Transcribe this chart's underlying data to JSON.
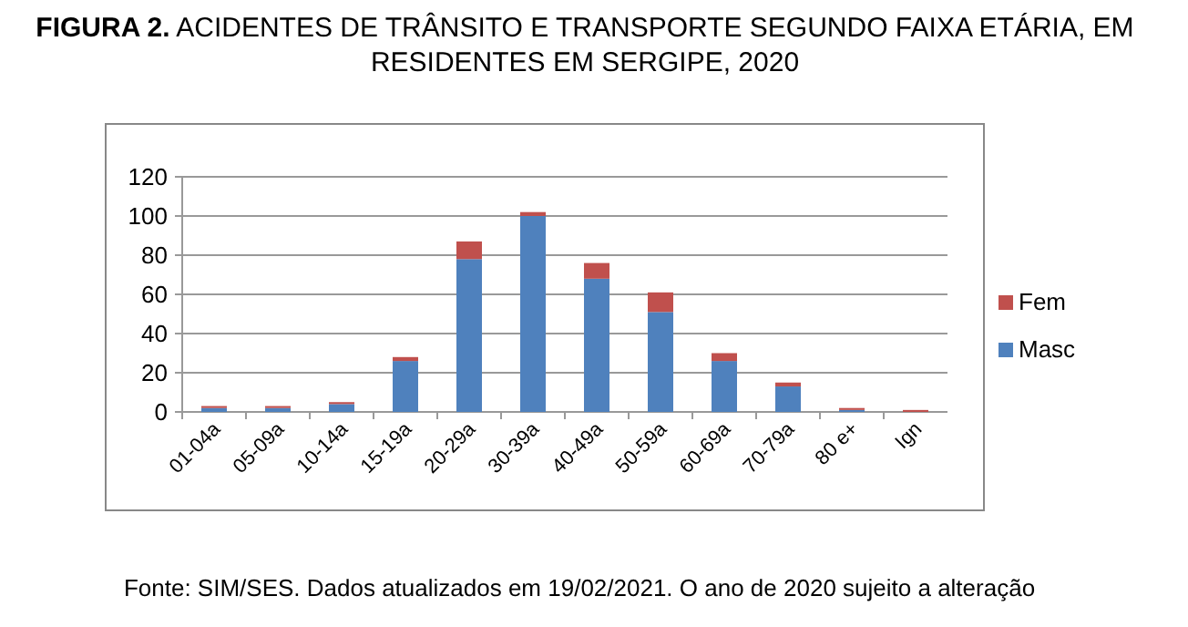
{
  "chart_data": {
    "type": "bar",
    "stacked": true,
    "title": "FIGURA 2. ACIDENTES DE TRÂNSITO E TRANSPORTE SEGUNDO FAIXA ETÁRIA, EM RESIDENTES EM SERGIPE, 2020",
    "categories": [
      "01-04a",
      "05-09a",
      "10-14a",
      "15-19a",
      "20-29a",
      "30-39a",
      "40-49a",
      "50-59a",
      "60-69a",
      "70-79a",
      "80 e+",
      "Ign"
    ],
    "series": [
      {
        "name": "Masc",
        "color": "#4f81bd",
        "values": [
          2,
          2,
          4,
          26,
          78,
          100,
          68,
          51,
          26,
          13,
          1,
          0
        ]
      },
      {
        "name": "Fem",
        "color": "#c0504d",
        "values": [
          1,
          1,
          1,
          2,
          9,
          2,
          8,
          10,
          4,
          2,
          1,
          1
        ]
      }
    ],
    "ylim": [
      0,
      120
    ],
    "yticks": [
      0,
      20,
      40,
      60,
      80,
      100,
      120
    ],
    "grid": "y",
    "legend": "right",
    "annotations": [
      "Fonte: SIM/SES. Dados atualizados em 19/02/2021. O ano de 2020 sujeito a alteração"
    ]
  }
}
